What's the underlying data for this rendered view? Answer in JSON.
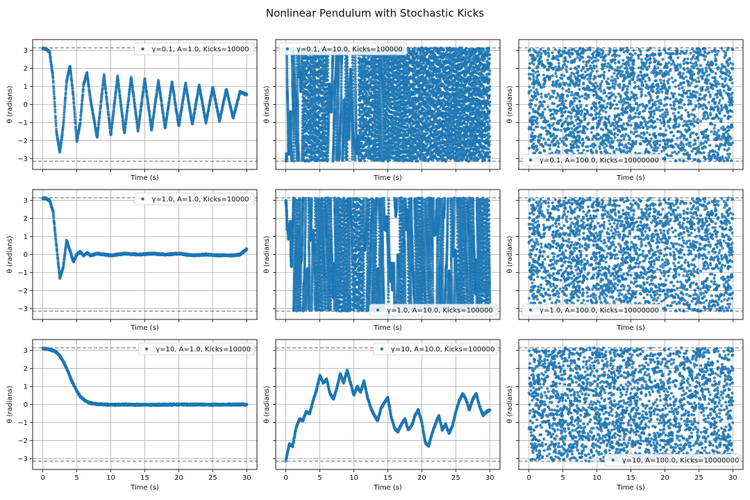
{
  "figure": {
    "title": "Nonlinear Pendulum with Stochastic Kicks",
    "point_color": "#1f77b4",
    "reference_line_color": "#808080",
    "grid_color": "#b0b0b0",
    "reference_lines": [
      3.14159,
      -3.14159
    ]
  },
  "chart_data": [
    {
      "type": "scatter",
      "row": 0,
      "col": 0,
      "legend": "γ=0.1, A=1.0, Kicks=10000",
      "legend_position": "top-right",
      "xlabel": "Time (s)",
      "ylabel": "θ (radians)",
      "xlim": [
        -1.5,
        31.5
      ],
      "ylim": [
        -3.6,
        3.6
      ],
      "x_ticks": [
        0,
        5,
        10,
        15,
        20,
        25,
        30
      ],
      "y_ticks": [
        -3,
        -2,
        -1,
        0,
        1,
        2,
        3
      ],
      "grid": true,
      "behavior": "damped-oscillation",
      "gamma": 0.1,
      "A": 1.0,
      "kicks": 10000,
      "x": [
        0,
        0.5,
        1.0,
        1.5,
        2.0,
        2.5,
        3.0,
        3.5,
        4.0,
        4.5,
        5.0,
        5.5,
        6.0,
        6.5,
        7.0,
        8.0,
        9.0,
        10.0,
        11.0,
        12.0,
        13.0,
        14.0,
        15.0,
        16.0,
        17.0,
        18.0,
        19.0,
        20.0,
        21.0,
        22.0,
        23.0,
        24.0,
        25.0,
        26.0,
        27.0,
        28.0,
        29.0,
        30.0
      ],
      "series": [
        {
          "values": [
            3.1,
            3.08,
            2.9,
            1.5,
            -1.5,
            -2.65,
            -1.2,
            1.3,
            2.15,
            0.4,
            -2.05,
            -1.0,
            1.1,
            1.75,
            0.3,
            -1.85,
            1.65,
            -1.7,
            1.55,
            -1.6,
            1.5,
            -1.45,
            1.4,
            -1.4,
            1.3,
            -1.3,
            1.25,
            -1.2,
            1.15,
            -1.1,
            1.05,
            -1.0,
            0.95,
            -0.9,
            0.85,
            -0.75,
            0.7,
            0.55
          ]
        }
      ]
    },
    {
      "type": "scatter",
      "row": 0,
      "col": 1,
      "legend": "γ=0.1, A=10.0, Kicks=100000",
      "legend_position": "top-left",
      "xlabel": "Time (s)",
      "ylabel": "θ (radians)",
      "xlim": [
        -1.5,
        31.5
      ],
      "ylim": [
        -3.6,
        3.6
      ],
      "x_ticks": [
        0,
        5,
        10,
        15,
        20,
        25,
        30
      ],
      "y_ticks": [
        -3,
        -2,
        -1,
        0,
        1,
        2,
        3
      ],
      "grid": true,
      "behavior": "wrapping-rotation",
      "gamma": 0.1,
      "A": 10.0,
      "kicks": 100000
    },
    {
      "type": "scatter",
      "row": 0,
      "col": 2,
      "legend": "γ=0.1, A=100.0, Kicks=10000000",
      "legend_position": "bottom-left",
      "xlabel": "Time (s)",
      "ylabel": "θ (radians)",
      "xlim": [
        -1.5,
        31.5
      ],
      "ylim": [
        -3.6,
        3.6
      ],
      "x_ticks": [
        0,
        5,
        10,
        15,
        20,
        25,
        30
      ],
      "y_ticks": [
        -3,
        -2,
        -1,
        0,
        1,
        2,
        3
      ],
      "grid": true,
      "behavior": "uniform-scatter",
      "gamma": 0.1,
      "A": 100.0,
      "kicks": 10000000
    },
    {
      "type": "scatter",
      "row": 1,
      "col": 0,
      "legend": "γ=1.0, A=1.0, Kicks=10000",
      "legend_position": "top-right",
      "xlabel": "Time (s)",
      "ylabel": "θ (radians)",
      "xlim": [
        -1.5,
        31.5
      ],
      "ylim": [
        -3.6,
        3.6
      ],
      "x_ticks": [
        0,
        5,
        10,
        15,
        20,
        25,
        30
      ],
      "y_ticks": [
        -3,
        -2,
        -1,
        0,
        1,
        2,
        3
      ],
      "grid": true,
      "behavior": "damped-oscillation",
      "gamma": 1.0,
      "A": 1.0,
      "kicks": 10000,
      "x": [
        0,
        0.5,
        1.0,
        1.5,
        2.0,
        2.5,
        3.0,
        3.5,
        4.0,
        4.5,
        5.0,
        5.5,
        6.0,
        6.5,
        7.0,
        8.0,
        10.0,
        12.0,
        14.0,
        16.0,
        18.0,
        20.0,
        22.0,
        24.0,
        26.0,
        28.0,
        29.0,
        30.0
      ],
      "series": [
        {
          "values": [
            3.12,
            3.1,
            3.0,
            2.4,
            0.5,
            -1.3,
            -0.7,
            0.8,
            0.2,
            -0.4,
            0.0,
            0.15,
            -0.05,
            0.1,
            -0.05,
            0.05,
            -0.05,
            0.05,
            0.0,
            0.05,
            0.0,
            0.05,
            -0.05,
            0.0,
            -0.05,
            -0.05,
            0.0,
            0.3
          ]
        }
      ]
    },
    {
      "type": "scatter",
      "row": 1,
      "col": 1,
      "legend": "γ=1.0, A=10.0, Kicks=100000",
      "legend_position": "bottom-right",
      "xlabel": "Time (s)",
      "ylabel": "θ (radians)",
      "xlim": [
        -1.5,
        31.5
      ],
      "ylim": [
        -3.6,
        3.6
      ],
      "x_ticks": [
        0,
        5,
        10,
        15,
        20,
        25,
        30
      ],
      "y_ticks": [
        -3,
        -2,
        -1,
        0,
        1,
        2,
        3
      ],
      "grid": true,
      "behavior": "wrapping-rotation",
      "gamma": 1.0,
      "A": 10.0,
      "kicks": 100000
    },
    {
      "type": "scatter",
      "row": 1,
      "col": 2,
      "legend": "γ=1.0, A=100.0, Kicks=10000000",
      "legend_position": "bottom-left",
      "xlabel": "Time (s)",
      "ylabel": "θ (radians)",
      "xlim": [
        -1.5,
        31.5
      ],
      "ylim": [
        -3.6,
        3.6
      ],
      "x_ticks": [
        0,
        5,
        10,
        15,
        20,
        25,
        30
      ],
      "y_ticks": [
        -3,
        -2,
        -1,
        0,
        1,
        2,
        3
      ],
      "grid": true,
      "behavior": "uniform-scatter",
      "gamma": 1.0,
      "A": 100.0,
      "kicks": 10000000
    },
    {
      "type": "scatter",
      "row": 2,
      "col": 0,
      "legend": "γ=10, A=1.0, Kicks=10000",
      "legend_position": "top-right",
      "xlabel": "Time (s)",
      "ylabel": "θ (radians)",
      "xlim": [
        -1.5,
        31.5
      ],
      "ylim": [
        -3.6,
        3.6
      ],
      "x_ticks": [
        0,
        5,
        10,
        15,
        20,
        25,
        30
      ],
      "y_ticks": [
        -3,
        -2,
        -1,
        0,
        1,
        2,
        3
      ],
      "grid": true,
      "behavior": "overdamped-decay",
      "gamma": 10,
      "A": 1.0,
      "kicks": 10000,
      "x": [
        0,
        0.5,
        1.0,
        1.5,
        2.0,
        2.5,
        3.0,
        3.5,
        4.0,
        4.5,
        5.0,
        5.5,
        6.0,
        6.5,
        7.0,
        8.0,
        9.0,
        10.0,
        12.0,
        15.0,
        20.0,
        25.0,
        30.0
      ],
      "series": [
        {
          "values": [
            3.1,
            3.08,
            3.05,
            3.0,
            2.9,
            2.7,
            2.4,
            2.0,
            1.55,
            1.1,
            0.75,
            0.45,
            0.28,
            0.16,
            0.08,
            0.02,
            0.0,
            -0.02,
            0.0,
            -0.02,
            0.0,
            -0.01,
            0.0
          ]
        }
      ]
    },
    {
      "type": "scatter",
      "row": 2,
      "col": 1,
      "legend": "γ=10, A=10.0, Kicks=100000",
      "legend_position": "top-right",
      "xlabel": "Time (s)",
      "ylabel": "θ (radians)",
      "xlim": [
        -1.5,
        31.5
      ],
      "ylim": [
        -3.6,
        3.6
      ],
      "x_ticks": [
        0,
        5,
        10,
        15,
        20,
        25,
        30
      ],
      "y_ticks": [
        -3,
        -2,
        -1,
        0,
        1,
        2,
        3
      ],
      "grid": true,
      "behavior": "random-walk",
      "gamma": 10,
      "A": 10.0,
      "kicks": 100000,
      "x": [
        0,
        0.5,
        1.0,
        1.5,
        2.0,
        2.5,
        3.0,
        3.5,
        4.0,
        4.5,
        5.0,
        5.5,
        6.0,
        6.5,
        7.0,
        7.5,
        8.0,
        8.5,
        9.0,
        9.5,
        10.0,
        10.5,
        11.0,
        11.5,
        12.0,
        12.5,
        13.0,
        13.5,
        14.0,
        14.5,
        15.0,
        15.5,
        16.0,
        16.5,
        17.0,
        17.5,
        18.0,
        18.5,
        19.0,
        19.5,
        20.0,
        20.5,
        21.0,
        21.5,
        22.0,
        22.5,
        23.0,
        23.5,
        24.0,
        24.5,
        25.0,
        25.5,
        26.0,
        26.5,
        27.0,
        27.5,
        28.0,
        28.5,
        29.0,
        29.5,
        30.0
      ],
      "series": [
        {
          "values": [
            -3.1,
            -2.2,
            -2.3,
            -1.3,
            -0.8,
            -0.9,
            -0.4,
            -0.5,
            0.2,
            0.8,
            1.6,
            1.2,
            1.4,
            0.6,
            0.3,
            0.9,
            1.7,
            1.2,
            1.9,
            1.2,
            0.5,
            1.0,
            0.7,
            1.3,
            0.4,
            -0.2,
            -0.6,
            -0.9,
            -0.2,
            0.1,
            0.4,
            -0.7,
            -1.3,
            -1.5,
            -1.1,
            -0.8,
            -1.4,
            -1.2,
            -0.6,
            -0.3,
            -1.0,
            -2.1,
            -2.3,
            -1.6,
            -1.1,
            -0.6,
            -1.4,
            -1.1,
            -1.6,
            -1.2,
            -0.4,
            0.2,
            0.6,
            0.3,
            -0.3,
            0.3,
            0.6,
            -0.1,
            -0.6,
            -0.4,
            -0.3
          ]
        }
      ]
    },
    {
      "type": "scatter",
      "row": 2,
      "col": 2,
      "legend": "γ=10, A=100.0, Kicks=10000000",
      "legend_position": "bottom-right",
      "xlabel": "Time (s)",
      "ylabel": "θ (radians)",
      "xlim": [
        -1.5,
        31.5
      ],
      "ylim": [
        -3.6,
        3.6
      ],
      "x_ticks": [
        0,
        5,
        10,
        15,
        20,
        25,
        30
      ],
      "y_ticks": [
        -3,
        -2,
        -1,
        0,
        1,
        2,
        3
      ],
      "grid": true,
      "behavior": "uniform-scatter",
      "gamma": 10,
      "A": 100.0,
      "kicks": 10000000
    }
  ]
}
